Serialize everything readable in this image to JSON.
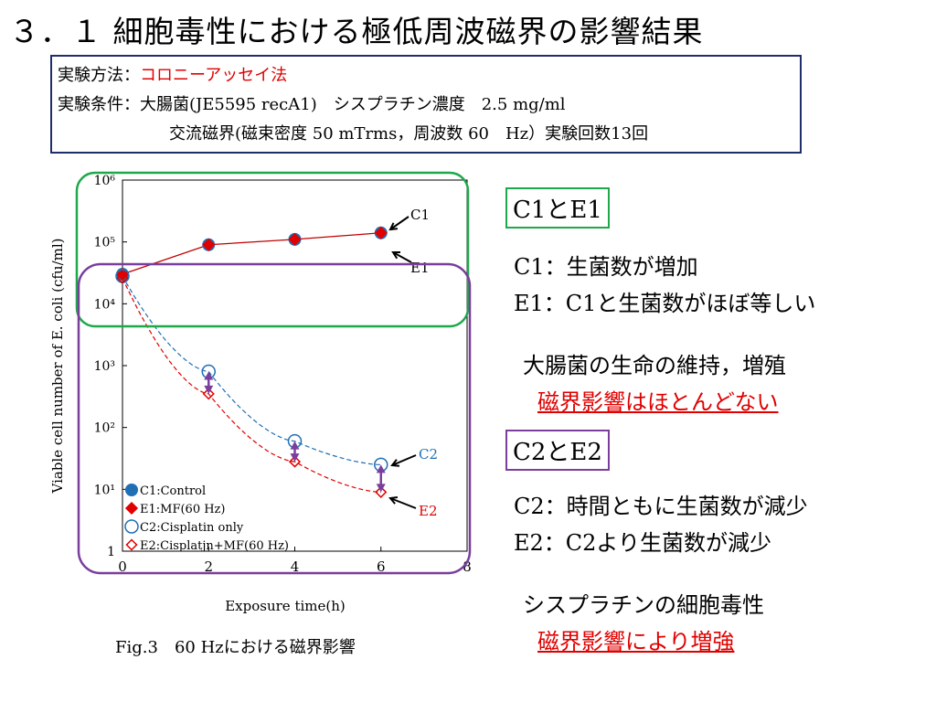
{
  "slide_title": "３．１ 細胞毒性における極低周波磁界の影響結果",
  "conditions": {
    "method_label": "実験方法：",
    "method_value": "コロニーアッセイ法",
    "cond_label": "実験条件：",
    "cond_line1": "大腸菌(JE5595 recA1)　シスプラチン濃度　2.5 mg/ml",
    "cond_line2": "交流磁界(磁束密度 50 mTrms，周波数 60　Hz）実験回数13回"
  },
  "chart_data": {
    "type": "scatter",
    "xlabel": "Exposure time(h)",
    "ylabel": "Viable cell number of E. coli (cfu/ml)",
    "xlim": [
      0,
      8
    ],
    "ylim_log10": [
      0,
      6
    ],
    "x_ticks": [
      "0",
      "2",
      "4",
      "6",
      "8"
    ],
    "y_ticks": [
      "1",
      "10¹",
      "10²",
      "10³",
      "10⁴",
      "10⁵",
      "10⁶"
    ],
    "series": [
      {
        "name": "C1:Control",
        "label": "C1",
        "color": "#1f6fb5",
        "marker": "filled-circle",
        "x": [
          0,
          2,
          4,
          6
        ],
        "y": [
          30000,
          90000,
          110000,
          140000
        ]
      },
      {
        "name": "E1:MF(60 Hz)",
        "label": "E1",
        "color": "#e00000",
        "marker": "filled-diamond",
        "x": [
          0,
          2,
          4,
          6
        ],
        "y": [
          30000,
          90000,
          110000,
          140000
        ]
      },
      {
        "name": "C2:Cisplatin only",
        "label": "C2",
        "color": "#1f6fb5",
        "marker": "open-circle",
        "x": [
          0,
          2,
          4,
          6
        ],
        "y": [
          28000,
          800,
          60,
          25
        ]
      },
      {
        "name": "E2:Cisplatjn+MF(60 Hz)",
        "label": "E2",
        "color": "#e00000",
        "marker": "open-diamond",
        "x": [
          0,
          2,
          4,
          6
        ],
        "y": [
          26000,
          350,
          28,
          9
        ]
      }
    ],
    "caption": "Fig.3　60 Hzにおける磁界影響"
  },
  "notes": {
    "box1": "C1とE1",
    "c1": "C1：生菌数が増加",
    "e1": "E1：C1と生菌数がほぼ等しい",
    "summary1a": "大腸菌の生命の維持，増殖",
    "summary1b": "磁界影響はほとんどない",
    "box2": "C2とE2",
    "c2": "C2：時間ともに生菌数が減少",
    "e2": "E2：C2より生菌数が減少",
    "summary2a": "シスプラチンの細胞毒性",
    "summary2b": "磁界影響により増強"
  },
  "colors": {
    "green": "#1fa84a",
    "purple": "#7a3e9d",
    "navy": "#1f2d6b",
    "accent_red": "#e00000",
    "blue": "#1f6fb5"
  }
}
